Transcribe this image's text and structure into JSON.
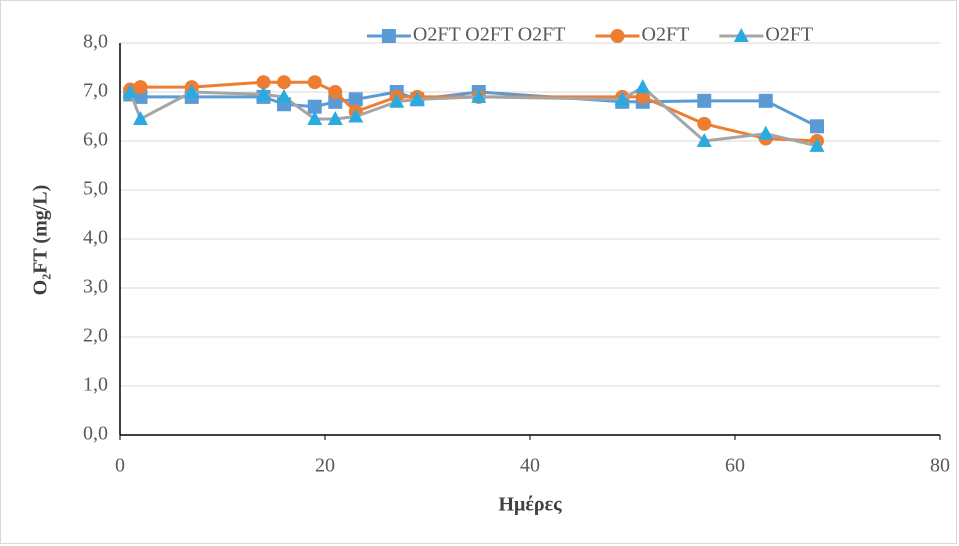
{
  "chart_data": {
    "type": "line",
    "x_label": "Ημέρες",
    "y_label": "O₂FT (mg/L)",
    "x": [
      1,
      2,
      7,
      14,
      16,
      19,
      21,
      23,
      27,
      29,
      35,
      49,
      51,
      57,
      63,
      68
    ],
    "series": [
      {
        "name": "O2FT O2FT O2FT",
        "color": "#5b9bd5",
        "marker": "square",
        "marker_color": "#5b9bd5",
        "values": [
          6.95,
          6.9,
          6.9,
          6.9,
          6.75,
          6.7,
          6.8,
          6.85,
          7.0,
          6.85,
          7.0,
          6.8,
          6.8,
          6.82,
          6.82,
          6.3
        ]
      },
      {
        "name": "O2FT",
        "color": "#ed7d31",
        "marker": "circle",
        "marker_color": "#ed7d31",
        "values": [
          7.05,
          7.1,
          7.1,
          7.2,
          7.2,
          7.2,
          7.0,
          6.6,
          6.9,
          6.9,
          6.9,
          6.9,
          6.9,
          6.35,
          6.05,
          6.0
        ]
      },
      {
        "name": "O2FT",
        "color": "#a5a5a5",
        "marker": "triangle",
        "marker_color": "#29abe2",
        "values": [
          7.0,
          6.45,
          7.0,
          6.95,
          6.9,
          6.45,
          6.45,
          6.5,
          6.8,
          6.85,
          6.9,
          6.85,
          7.1,
          6.0,
          6.15,
          5.9
        ]
      }
    ],
    "xlim": [
      0,
      80
    ],
    "xticks": [
      0,
      20,
      40,
      60,
      80
    ],
    "ylim": [
      0,
      8
    ],
    "yticks": [
      {
        "value": 0,
        "label": "0,0"
      },
      {
        "value": 1,
        "label": "1,0"
      },
      {
        "value": 2,
        "label": "2,0"
      },
      {
        "value": 3,
        "label": "3,0"
      },
      {
        "value": 4,
        "label": "4,0"
      },
      {
        "value": 5,
        "label": "5,0"
      },
      {
        "value": 6,
        "label": "6,0"
      },
      {
        "value": 7,
        "label": "7,0"
      },
      {
        "value": 8,
        "label": "8,0"
      }
    ],
    "grid": true,
    "legend": "top"
  }
}
